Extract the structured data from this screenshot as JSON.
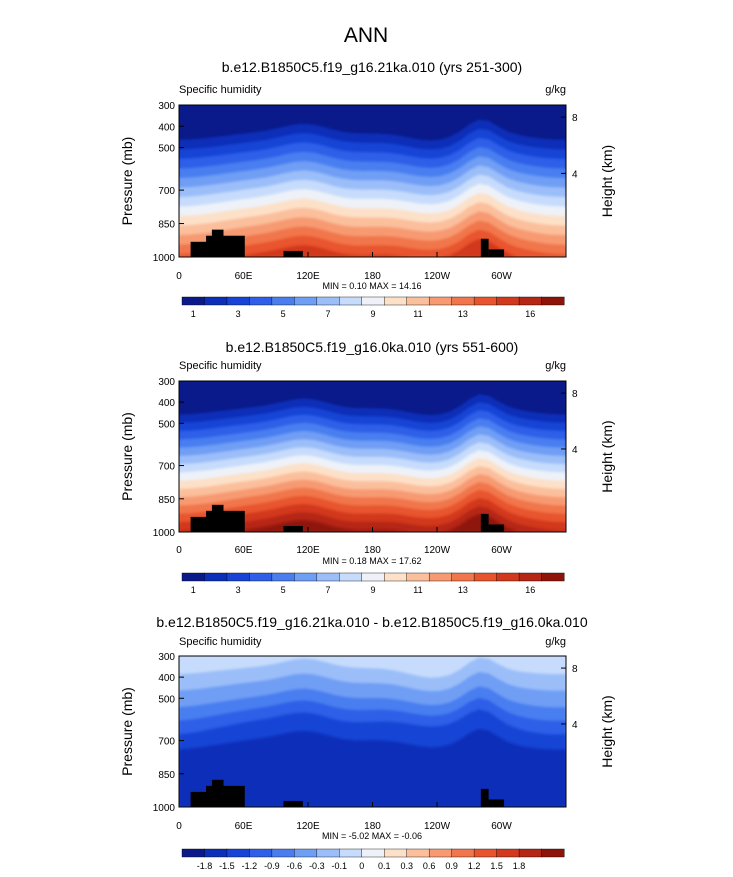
{
  "page_title": "ANN",
  "chart_data": [
    {
      "type": "heatmap",
      "title": "b.e12.B1850C5.f19_g16.21ka.010 (yrs 251-300)",
      "left_label": "Specific humidity",
      "units": "g/kg",
      "ylabel": "Pressure (mb)",
      "right_axis_label": "Height (km)",
      "x_ticks": [
        "0",
        "60E",
        "120E",
        "180",
        "120W",
        "60W"
      ],
      "y_ticks": [
        "300",
        "400",
        "500",
        "700",
        "850",
        "1000"
      ],
      "right_ticks": [
        "8",
        "4"
      ],
      "stats": "MIN =   0.10   MAX =  14.16",
      "colorbar_labels": [
        "1",
        "3",
        "5",
        "7",
        "9",
        "11",
        "13",
        "16"
      ],
      "colorbar_colors": [
        "#0a1a8a",
        "#0b2fb8",
        "#1744d6",
        "#2f5fe8",
        "#4a7ef0",
        "#6f9ef5",
        "#9bbef9",
        "#c7dcfc",
        "#eef2f8",
        "#fde0c8",
        "#fbbf9c",
        "#f79a72",
        "#f1764b",
        "#e8542d",
        "#d2391c",
        "#b52614",
        "#8e1409"
      ],
      "surface_color": "#000000"
    },
    {
      "type": "heatmap",
      "title": "b.e12.B1850C5.f19_g16.0ka.010 (yrs 551-600)",
      "left_label": "Specific humidity",
      "units": "g/kg",
      "ylabel": "Pressure (mb)",
      "right_axis_label": "Height (km)",
      "x_ticks": [
        "0",
        "60E",
        "120E",
        "180",
        "120W",
        "60W"
      ],
      "y_ticks": [
        "300",
        "400",
        "500",
        "700",
        "850",
        "1000"
      ],
      "right_ticks": [
        "8",
        "4"
      ],
      "stats": "MIN =   0.18   MAX =  17.62",
      "colorbar_labels": [
        "1",
        "3",
        "5",
        "7",
        "9",
        "11",
        "13",
        "16"
      ],
      "colorbar_colors": [
        "#0a1a8a",
        "#0b2fb8",
        "#1744d6",
        "#2f5fe8",
        "#4a7ef0",
        "#6f9ef5",
        "#9bbef9",
        "#c7dcfc",
        "#eef2f8",
        "#fde0c8",
        "#fbbf9c",
        "#f79a72",
        "#f1764b",
        "#e8542d",
        "#d2391c",
        "#b52614",
        "#8e1409"
      ],
      "surface_color": "#000000"
    },
    {
      "type": "heatmap",
      "title": "b.e12.B1850C5.f19_g16.21ka.010 - b.e12.B1850C5.f19_g16.0ka.010",
      "left_label": "Specific humidity",
      "units": "g/kg",
      "ylabel": "Pressure (mb)",
      "right_axis_label": "Height (km)",
      "x_ticks": [
        "0",
        "60E",
        "120E",
        "180",
        "120W",
        "60W"
      ],
      "y_ticks": [
        "300",
        "400",
        "500",
        "700",
        "850",
        "1000"
      ],
      "right_ticks": [
        "8",
        "4"
      ],
      "stats": "MIN =  -5.02   MAX =  -0.06",
      "colorbar_labels": [
        "-1.8",
        "-1.5",
        "-1.2",
        "-0.9",
        "-0.6",
        "-0.3",
        "-0.1",
        "0",
        "0.1",
        "0.3",
        "0.6",
        "0.9",
        "1.2",
        "1.5",
        "1.8"
      ],
      "colorbar_colors": [
        "#0a1a8a",
        "#0b2fb8",
        "#1744d6",
        "#2f5fe8",
        "#4a7ef0",
        "#6f9ef5",
        "#9bbef9",
        "#c7dcfc",
        "#eef2f8",
        "#fde0c8",
        "#fbbf9c",
        "#f79a72",
        "#f1764b",
        "#e8542d",
        "#d2391c",
        "#b52614",
        "#8e1409"
      ],
      "surface_color": "#000000"
    }
  ]
}
